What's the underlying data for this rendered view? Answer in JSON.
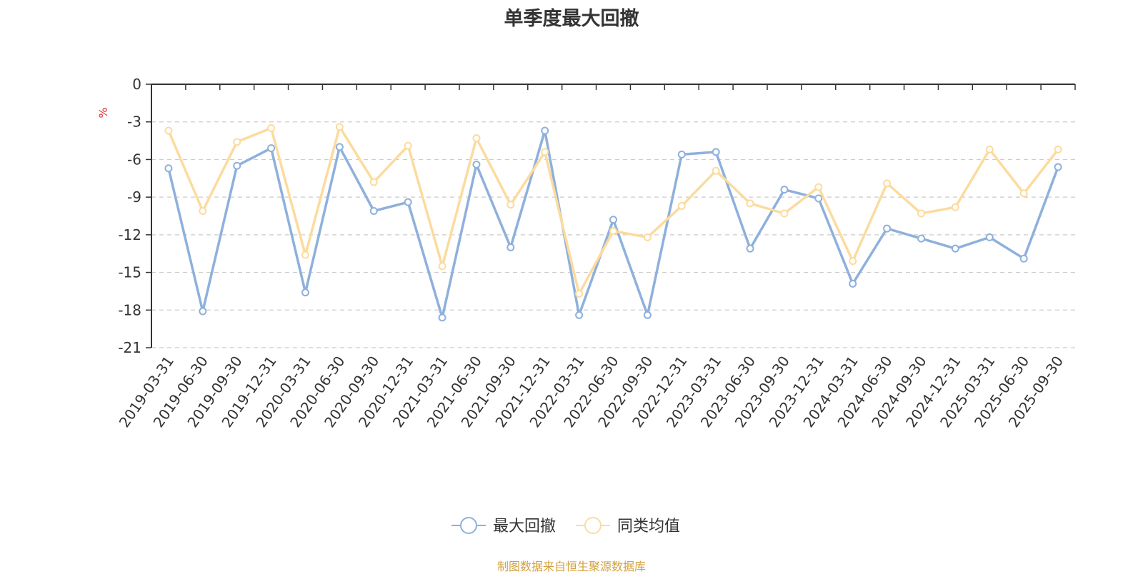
{
  "chart_data": {
    "type": "line",
    "title": "单季度最大回撤",
    "ylabel": "%",
    "ylim": [
      -21,
      0
    ],
    "yticks": [
      0,
      -3,
      -6,
      -9,
      -12,
      -15,
      -18,
      -21
    ],
    "grid": true,
    "legend_position": "bottom-center",
    "categories": [
      "2019-03-31",
      "2019-06-30",
      "2019-09-30",
      "2019-12-31",
      "2020-03-31",
      "2020-06-30",
      "2020-09-30",
      "2020-12-31",
      "2021-03-31",
      "2021-06-30",
      "2021-09-30",
      "2021-12-31",
      "2022-03-31",
      "2022-06-30",
      "2022-09-30",
      "2022-12-31",
      "2023-03-31",
      "2023-06-30",
      "2023-09-30",
      "2023-12-31",
      "2024-03-31",
      "2024-06-30",
      "2024-09-30",
      "2024-12-31",
      "2025-03-31",
      "2025-06-30",
      "2025-09-30"
    ],
    "series": [
      {
        "name": "最大回撤",
        "color": "#8eb0dc",
        "values": [
          -6.7,
          -18.1,
          -6.5,
          -5.1,
          -16.6,
          -5.0,
          -10.1,
          -9.4,
          -18.6,
          -6.4,
          -13.0,
          -3.7,
          -18.4,
          -10.8,
          -18.4,
          -5.6,
          -5.4,
          -13.1,
          -8.4,
          -9.1,
          -15.9,
          -11.5,
          -12.3,
          -13.1,
          -12.2,
          -13.9,
          -6.6
        ]
      },
      {
        "name": "同类均值",
        "color": "#fcdb9e",
        "values": [
          -3.7,
          -10.1,
          -4.6,
          -3.5,
          -13.6,
          -3.4,
          -7.8,
          -4.9,
          -14.5,
          -4.3,
          -9.6,
          -5.4,
          -16.7,
          -11.7,
          -12.2,
          -9.7,
          -6.9,
          -9.5,
          -10.3,
          -8.2,
          -14.1,
          -7.9,
          -10.3,
          -9.8,
          -5.2,
          -8.7,
          -5.2
        ]
      }
    ]
  },
  "source": {
    "text": "制图数据来自恒生聚源数据库",
    "color": "#d4a13c"
  },
  "axis_unit_color": "#e03030"
}
